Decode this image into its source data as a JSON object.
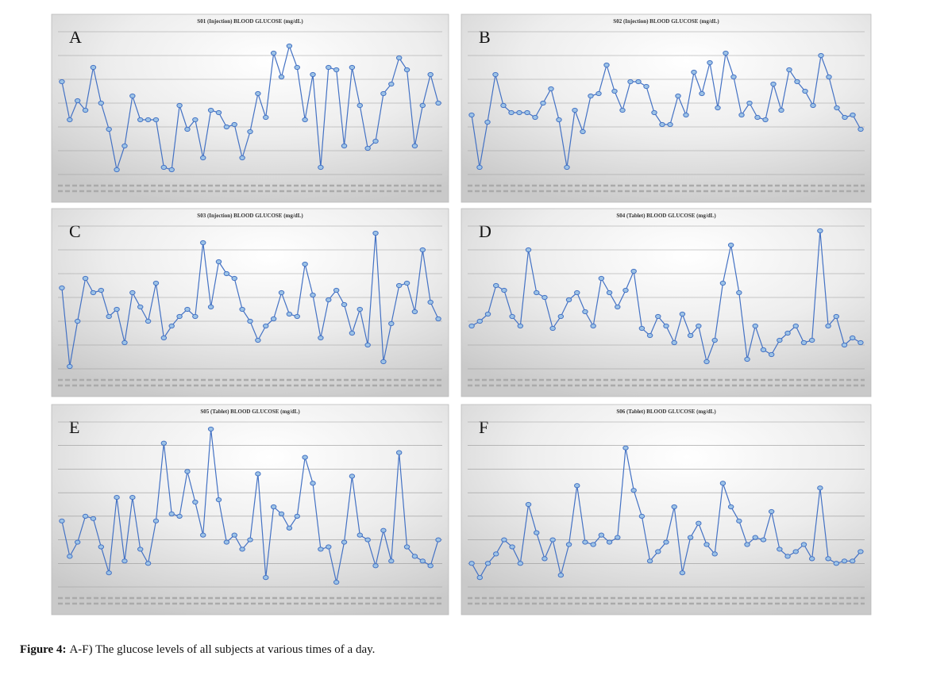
{
  "chart_data": [
    {
      "type": "line",
      "panel": "A",
      "title": "S01 (Injection) BLOOD GLUCOSE (mg/dL)",
      "color": "#4472c4",
      "ylim": [
        0,
        6
      ],
      "grid": true,
      "values": [
        3.9,
        2.3,
        3.1,
        2.7,
        4.5,
        3.0,
        1.9,
        0.2,
        1.2,
        3.3,
        2.3,
        2.3,
        2.3,
        0.3,
        0.2,
        2.9,
        1.9,
        2.3,
        0.7,
        2.7,
        2.6,
        2.0,
        2.1,
        0.7,
        1.8,
        3.4,
        2.4,
        5.1,
        4.1,
        5.4,
        4.5,
        2.3,
        4.2,
        0.3,
        4.5,
        4.4,
        1.2,
        4.5,
        2.9,
        1.1,
        1.4,
        3.4,
        3.8,
        4.9,
        4.4,
        1.2,
        2.9,
        4.2,
        3.0
      ]
    },
    {
      "type": "line",
      "panel": "B",
      "title": "S02 (Injection) BLOOD GLUCOSE (mg/dL)",
      "color": "#4472c4",
      "ylim": [
        0,
        6
      ],
      "grid": true,
      "values": [
        2.5,
        0.3,
        2.2,
        4.2,
        2.9,
        2.6,
        2.6,
        2.6,
        2.4,
        3.0,
        3.6,
        2.3,
        0.3,
        2.7,
        1.8,
        3.3,
        3.4,
        4.6,
        3.5,
        2.7,
        3.9,
        3.9,
        3.7,
        2.6,
        2.1,
        2.1,
        3.3,
        2.5,
        4.3,
        3.4,
        4.7,
        2.8,
        5.1,
        4.1,
        2.5,
        3.0,
        2.4,
        2.3,
        3.8,
        2.7,
        4.4,
        3.9,
        3.5,
        2.9,
        5.0,
        4.1,
        2.8,
        2.4,
        2.5,
        1.9
      ]
    },
    {
      "type": "line",
      "panel": "C",
      "title": "S03 (Injection) BLOOD GLUCOSE (mg/dL)",
      "color": "#4472c4",
      "ylim": [
        0,
        6
      ],
      "grid": true,
      "values": [
        3.4,
        0.1,
        2.0,
        3.8,
        3.2,
        3.3,
        2.2,
        2.5,
        1.1,
        3.2,
        2.6,
        2.0,
        3.6,
        1.3,
        1.8,
        2.2,
        2.5,
        2.2,
        5.3,
        2.6,
        4.5,
        4.0,
        3.8,
        2.5,
        2.0,
        1.2,
        1.8,
        2.1,
        3.2,
        2.3,
        2.2,
        4.4,
        3.1,
        1.3,
        2.9,
        3.3,
        2.7,
        1.5,
        2.5,
        1.0,
        5.7,
        0.3,
        1.9,
        3.5,
        3.6,
        2.4,
        5.0,
        2.8,
        2.1
      ]
    },
    {
      "type": "line",
      "panel": "D",
      "title": "S04 (Tablet) BLOOD GLUCOSE (mg/dL)",
      "color": "#4472c4",
      "ylim": [
        0,
        6
      ],
      "grid": true,
      "values": [
        1.8,
        2.0,
        2.3,
        3.5,
        3.3,
        2.2,
        1.8,
        5.0,
        3.2,
        3.0,
        1.7,
        2.2,
        2.9,
        3.2,
        2.4,
        1.8,
        3.8,
        3.2,
        2.6,
        3.3,
        4.1,
        1.7,
        1.4,
        2.2,
        1.8,
        1.1,
        2.3,
        1.4,
        1.8,
        0.3,
        1.2,
        3.6,
        5.2,
        3.2,
        0.4,
        1.8,
        0.8,
        0.6,
        1.2,
        1.5,
        1.8,
        1.1,
        1.2,
        5.8,
        1.8,
        2.2,
        1.0,
        1.3,
        1.1
      ]
    },
    {
      "type": "line",
      "panel": "E",
      "title": "S05 (Tablet) BLOOD GLUCOSE (mg/dL)",
      "color": "#4472c4",
      "ylim": [
        0,
        7
      ],
      "grid": true,
      "values": [
        2.8,
        1.3,
        1.9,
        3.0,
        2.9,
        1.7,
        0.6,
        3.8,
        1.1,
        3.8,
        1.6,
        1.0,
        2.8,
        6.1,
        3.1,
        3.0,
        4.9,
        3.6,
        2.2,
        6.7,
        3.7,
        1.9,
        2.2,
        1.6,
        2.0,
        4.8,
        0.4,
        3.4,
        3.1,
        2.5,
        3.0,
        5.5,
        4.4,
        1.6,
        1.7,
        0.2,
        1.9,
        4.7,
        2.2,
        2.0,
        0.9,
        2.4,
        1.1,
        5.7,
        1.7,
        1.3,
        1.1,
        0.9,
        2.0
      ]
    },
    {
      "type": "line",
      "panel": "F",
      "title": "S06 (Tablet) BLOOD GLUCOSE (mg/dL)",
      "color": "#4472c4",
      "ylim": [
        0,
        7
      ],
      "grid": true,
      "values": [
        1.0,
        0.4,
        1.0,
        1.4,
        2.0,
        1.7,
        1.0,
        3.5,
        2.3,
        1.2,
        2.0,
        0.5,
        1.8,
        4.3,
        1.9,
        1.8,
        2.2,
        1.9,
        2.1,
        5.9,
        4.1,
        3.0,
        1.1,
        1.5,
        1.9,
        3.4,
        0.6,
        2.1,
        2.7,
        1.8,
        1.4,
        4.4,
        3.4,
        2.8,
        1.8,
        2.1,
        2.0,
        3.2,
        1.6,
        1.3,
        1.5,
        1.8,
        1.2,
        4.2,
        1.2,
        1.0,
        1.1,
        1.1,
        1.5
      ]
    }
  ],
  "caption": {
    "label": "Figure 4:",
    "text": "A-F) The glucose levels of all subjects at various times of a day."
  }
}
